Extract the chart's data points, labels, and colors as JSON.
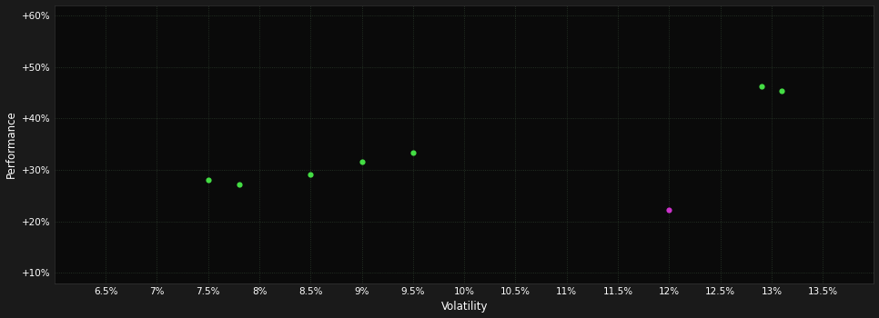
{
  "background_color": "#1a1a1a",
  "plot_bg_color": "#0a0a0a",
  "grid_color": "#2a3a2a",
  "text_color": "#ffffff",
  "xlabel": "Volatility",
  "ylabel": "Performance",
  "xlim": [
    0.06,
    0.14
  ],
  "ylim": [
    0.08,
    0.62
  ],
  "xticks": [
    0.065,
    0.07,
    0.075,
    0.08,
    0.085,
    0.09,
    0.095,
    0.1,
    0.105,
    0.11,
    0.115,
    0.12,
    0.125,
    0.13,
    0.135
  ],
  "yticks": [
    0.1,
    0.2,
    0.3,
    0.4,
    0.5,
    0.6
  ],
  "xtick_labels": [
    "6.5%",
    "7%",
    "7.5%",
    "8%",
    "8.5%",
    "9%",
    "9.5%",
    "10%",
    "10.5%",
    "11%",
    "11.5%",
    "12%",
    "12.5%",
    "13%",
    "13.5%"
  ],
  "ytick_labels": [
    "+10%",
    "+20%",
    "+30%",
    "+40%",
    "+50%",
    "+60%"
  ],
  "green_points": [
    [
      0.075,
      0.28
    ],
    [
      0.078,
      0.272
    ],
    [
      0.085,
      0.292
    ],
    [
      0.09,
      0.316
    ],
    [
      0.095,
      0.334
    ],
    [
      0.129,
      0.462
    ],
    [
      0.131,
      0.453
    ]
  ],
  "magenta_points": [
    [
      0.12,
      0.222
    ]
  ],
  "green_color": "#44dd44",
  "magenta_color": "#cc33cc",
  "point_size": 20
}
